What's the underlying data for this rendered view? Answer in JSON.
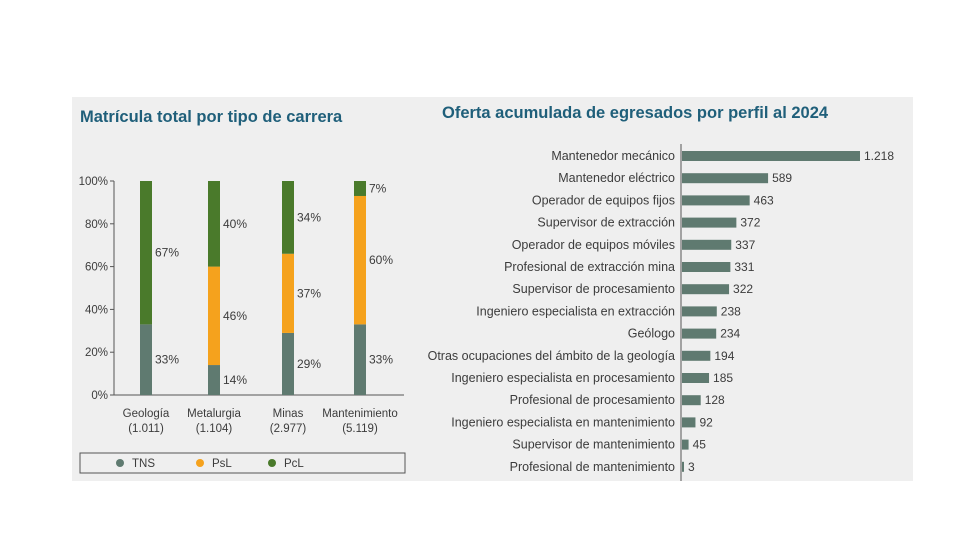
{
  "colors": {
    "title": "#1f5f7a",
    "tns": "#5f7a70",
    "psl": "#f5a21d",
    "pcl": "#4a7a2b",
    "hbar": "#5f7a70",
    "panel": "#efefef"
  },
  "chart_data": [
    {
      "type": "bar",
      "stacked": true,
      "title": "Matrícula total por tipo de carrera",
      "categories": [
        "Geología",
        "Metalurgia",
        "Minas",
        "Mantenimiento"
      ],
      "category_counts": [
        "(1.011)",
        "(1.104)",
        "(2.977)",
        "(5.119)"
      ],
      "series": [
        {
          "name": "TNS",
          "values": [
            33,
            14,
            29,
            33
          ],
          "labels": [
            "33%",
            "14%",
            "29%",
            "33%"
          ]
        },
        {
          "name": "PsL",
          "values": [
            0,
            46,
            37,
            60
          ],
          "labels": [
            "",
            "46%",
            "37%",
            "60%"
          ]
        },
        {
          "name": "PcL",
          "values": [
            67,
            40,
            34,
            7
          ],
          "labels": [
            "67%",
            "40%",
            "34%",
            "7%"
          ]
        }
      ],
      "y_ticks": [
        "0%",
        "20%",
        "40%",
        "60%",
        "80%",
        "100%"
      ],
      "ylim": [
        0,
        100
      ],
      "legend_position": "bottom"
    },
    {
      "type": "bar",
      "orientation": "horizontal",
      "title": "Oferta acumulada de egresados por perfil al 2024",
      "categories": [
        "Mantenedor mecánico",
        "Mantenedor eléctrico",
        "Operador de equipos fijos",
        "Supervisor de extracción",
        "Operador de equipos móviles",
        "Profesional de extracción mina",
        "Supervisor de procesamiento",
        "Ingeniero especialista en extracción",
        "Geólogo",
        "Otras ocupaciones del ámbito de la geología",
        "Ingeniero especialista en procesamiento",
        "Profesional de procesamiento",
        "Ingeniero especialista en mantenimiento",
        "Supervisor de mantenimiento",
        "Profesional de mantenimiento"
      ],
      "values": [
        1218,
        589,
        463,
        372,
        337,
        331,
        322,
        238,
        234,
        194,
        185,
        128,
        92,
        45,
        3
      ],
      "value_labels": [
        "1.218",
        "589",
        "463",
        "372",
        "337",
        "331",
        "322",
        "238",
        "234",
        "194",
        "185",
        "128",
        "92",
        "45",
        "3"
      ]
    }
  ]
}
